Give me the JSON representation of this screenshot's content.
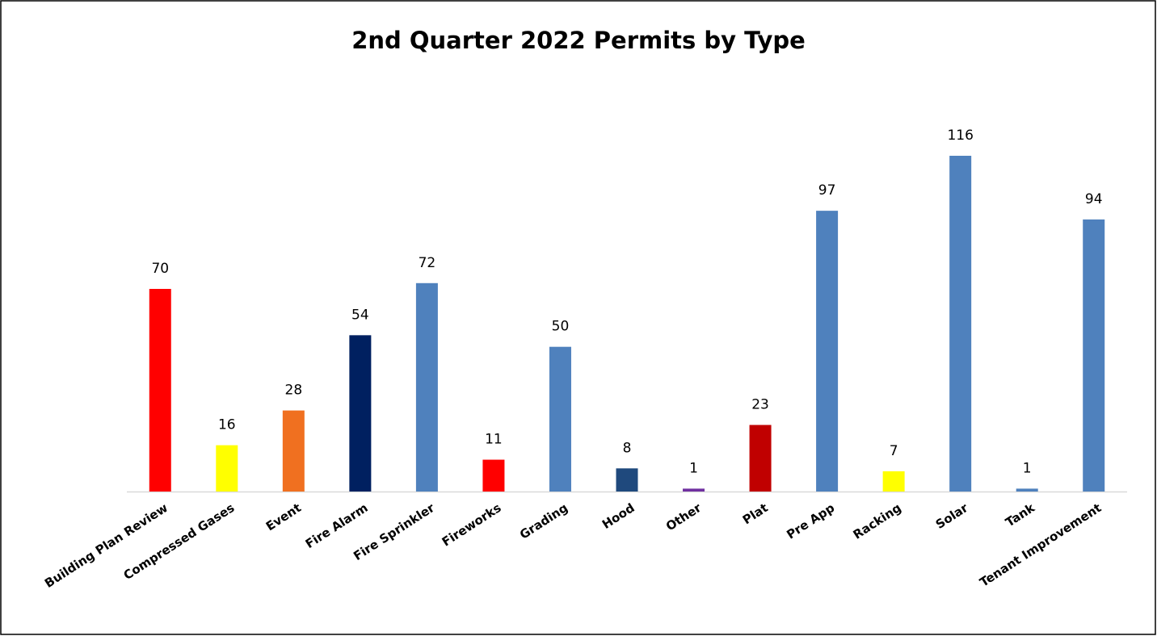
{
  "chart_data": {
    "type": "bar",
    "title": "2nd Quarter 2022 Permits by Type",
    "categories": [
      "Building Plan Review",
      "Compressed Gases",
      "Event",
      "Fire Alarm",
      "Fire Sprinkler",
      "Fireworks",
      "Grading",
      "Hood",
      "Other",
      "Plat",
      "Pre App",
      "Racking",
      "Solar",
      "Tank",
      "Tenant Improvement"
    ],
    "values": [
      70,
      16,
      28,
      54,
      72,
      11,
      50,
      8,
      1,
      23,
      97,
      7,
      116,
      1,
      94
    ],
    "colors": [
      "#ff0000",
      "#ffff00",
      "#f07020",
      "#002060",
      "#4f81bd",
      "#ff0000",
      "#4f81bd",
      "#1f497d",
      "#7030a0",
      "#c00000",
      "#4f81bd",
      "#ffff00",
      "#4f81bd",
      "#4f81bd",
      "#4f81bd"
    ]
  }
}
